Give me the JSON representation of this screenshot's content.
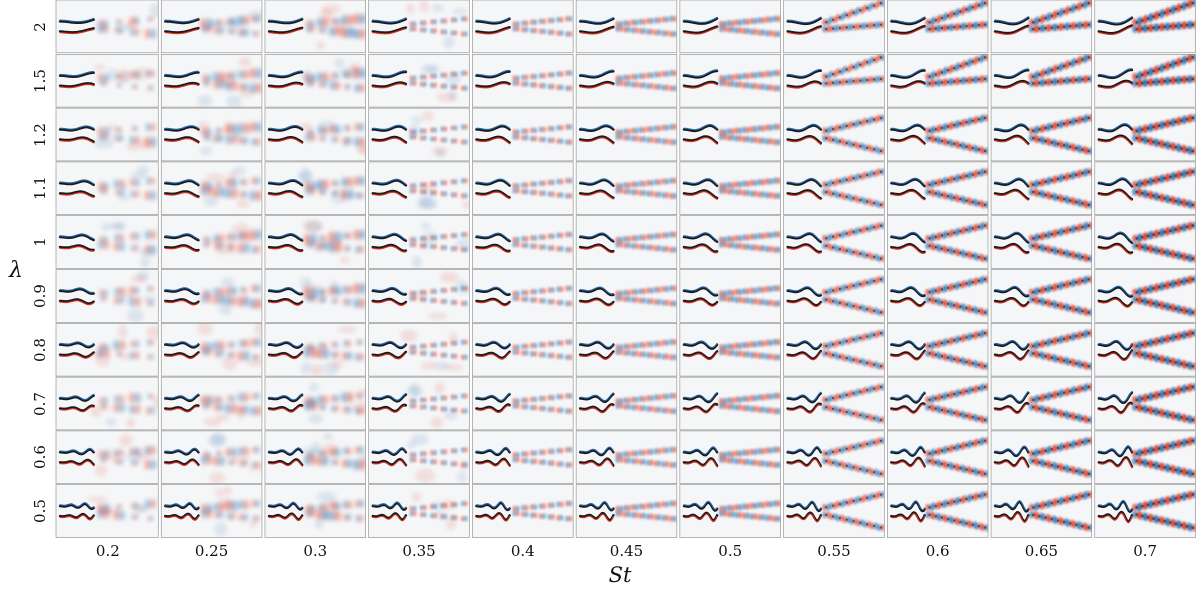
{
  "x_axis": {
    "label": "St",
    "ticks": [
      "0.2",
      "0.25",
      "0.3",
      "0.35",
      "0.4",
      "0.45",
      "0.5",
      "0.55",
      "0.6",
      "0.65",
      "0.7"
    ]
  },
  "y_axis": {
    "label": "λ",
    "ticks": [
      "2",
      "1.5",
      "1.2",
      "1.1",
      "1",
      "0.9",
      "0.8",
      "0.7",
      "0.6",
      "0.5"
    ]
  },
  "colors": {
    "positive_vorticity": "#d7301f",
    "negative_vorticity": "#2166ac",
    "body_outline": "#1a1a1a",
    "panel_background": "#f5f6f7",
    "panel_border": "#888888"
  }
}
